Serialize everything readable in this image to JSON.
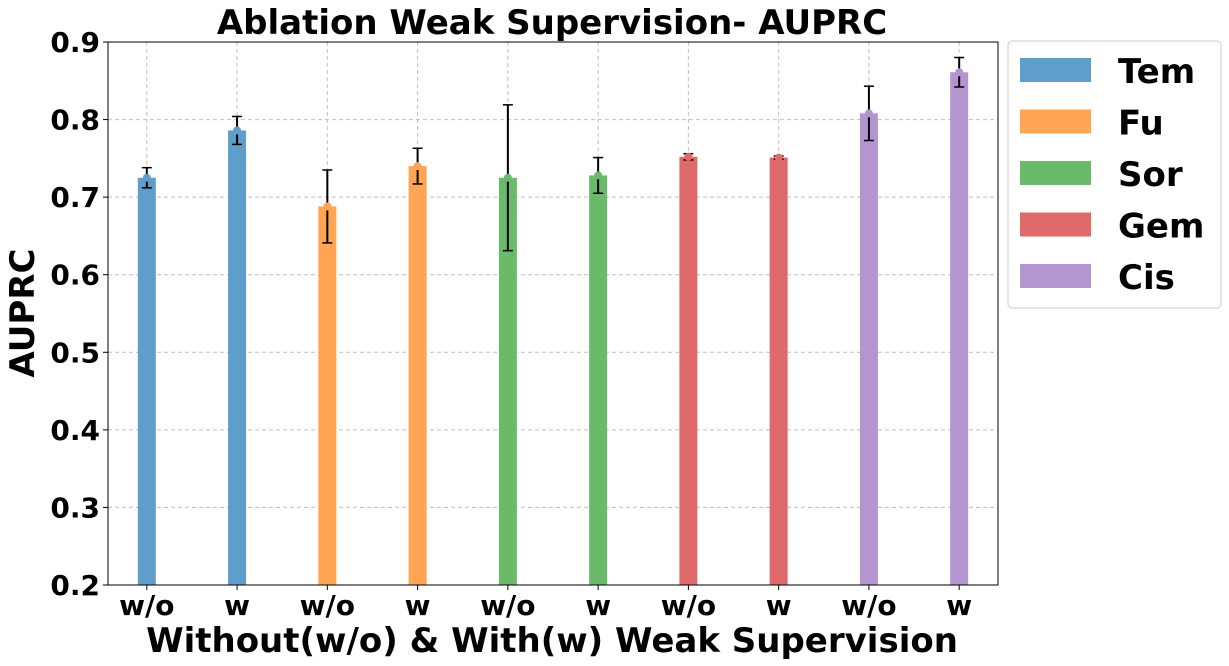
{
  "chart_data": {
    "type": "bar",
    "title": "Ablation Weak Supervision- AUPRC",
    "xlabel": "Without(w/o) & With(w) Weak Supervision",
    "ylabel": "AUPRC",
    "ylim": [
      0.2,
      0.9
    ],
    "yticks": [
      "0.2",
      "0.3",
      "0.4",
      "0.5",
      "0.6",
      "0.7",
      "0.8",
      "0.9"
    ],
    "grid": true,
    "legend_position": "outside-right-top",
    "groups": [
      {
        "name": "Tem",
        "color": "#5f9ecb",
        "bars": [
          {
            "label": "w/o",
            "value": 0.725,
            "err": 0.013
          },
          {
            "label": "w",
            "value": 0.786,
            "err": 0.018
          }
        ]
      },
      {
        "name": "Fu",
        "color": "#ffa554",
        "bars": [
          {
            "label": "w/o",
            "value": 0.688,
            "err": 0.047
          },
          {
            "label": "w",
            "value": 0.74,
            "err": 0.023
          }
        ]
      },
      {
        "name": "Sor",
        "color": "#6aba6a",
        "bars": [
          {
            "label": "w/o",
            "value": 0.725,
            "err": 0.094
          },
          {
            "label": "w",
            "value": 0.728,
            "err": 0.023
          }
        ]
      },
      {
        "name": "Gem",
        "color": "#e06a6a",
        "bars": [
          {
            "label": "w/o",
            "value": 0.752,
            "err": 0.004
          },
          {
            "label": "w",
            "value": 0.751,
            "err": 0.002
          }
        ]
      },
      {
        "name": "Cis",
        "color": "#b395d0",
        "bars": [
          {
            "label": "w/o",
            "value": 0.808,
            "err": 0.035
          },
          {
            "label": "w",
            "value": 0.861,
            "err": 0.019
          }
        ]
      }
    ]
  }
}
